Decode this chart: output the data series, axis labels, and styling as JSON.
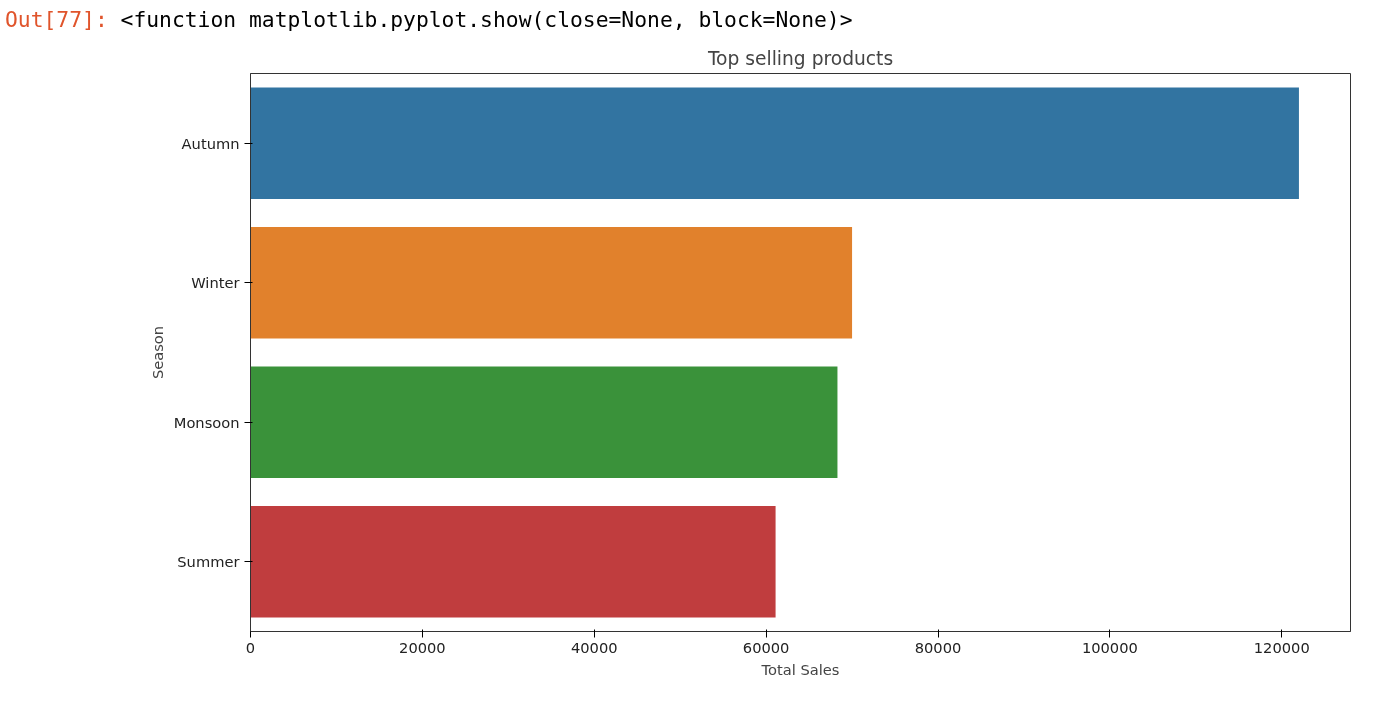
{
  "chart_data": {
    "type": "bar",
    "orientation": "horizontal",
    "title": "Top selling products",
    "xlabel": "Total Sales",
    "ylabel": "Season",
    "categories": [
      "Autumn",
      "Winter",
      "Monsoon",
      "Summer"
    ],
    "values": [
      122000,
      70000,
      68300,
      61100
    ],
    "colors": [
      "#3274a1",
      "#e1812c",
      "#3a923a",
      "#c03d3e"
    ],
    "xlim": [
      0,
      128000
    ],
    "xticks": [
      0,
      20000,
      40000,
      60000,
      80000,
      100000,
      120000
    ],
    "grid": false,
    "annotations": [
      "Out[77]:",
      "<function matplotlib.pyplot.show(close=None, block=None)>"
    ]
  }
}
